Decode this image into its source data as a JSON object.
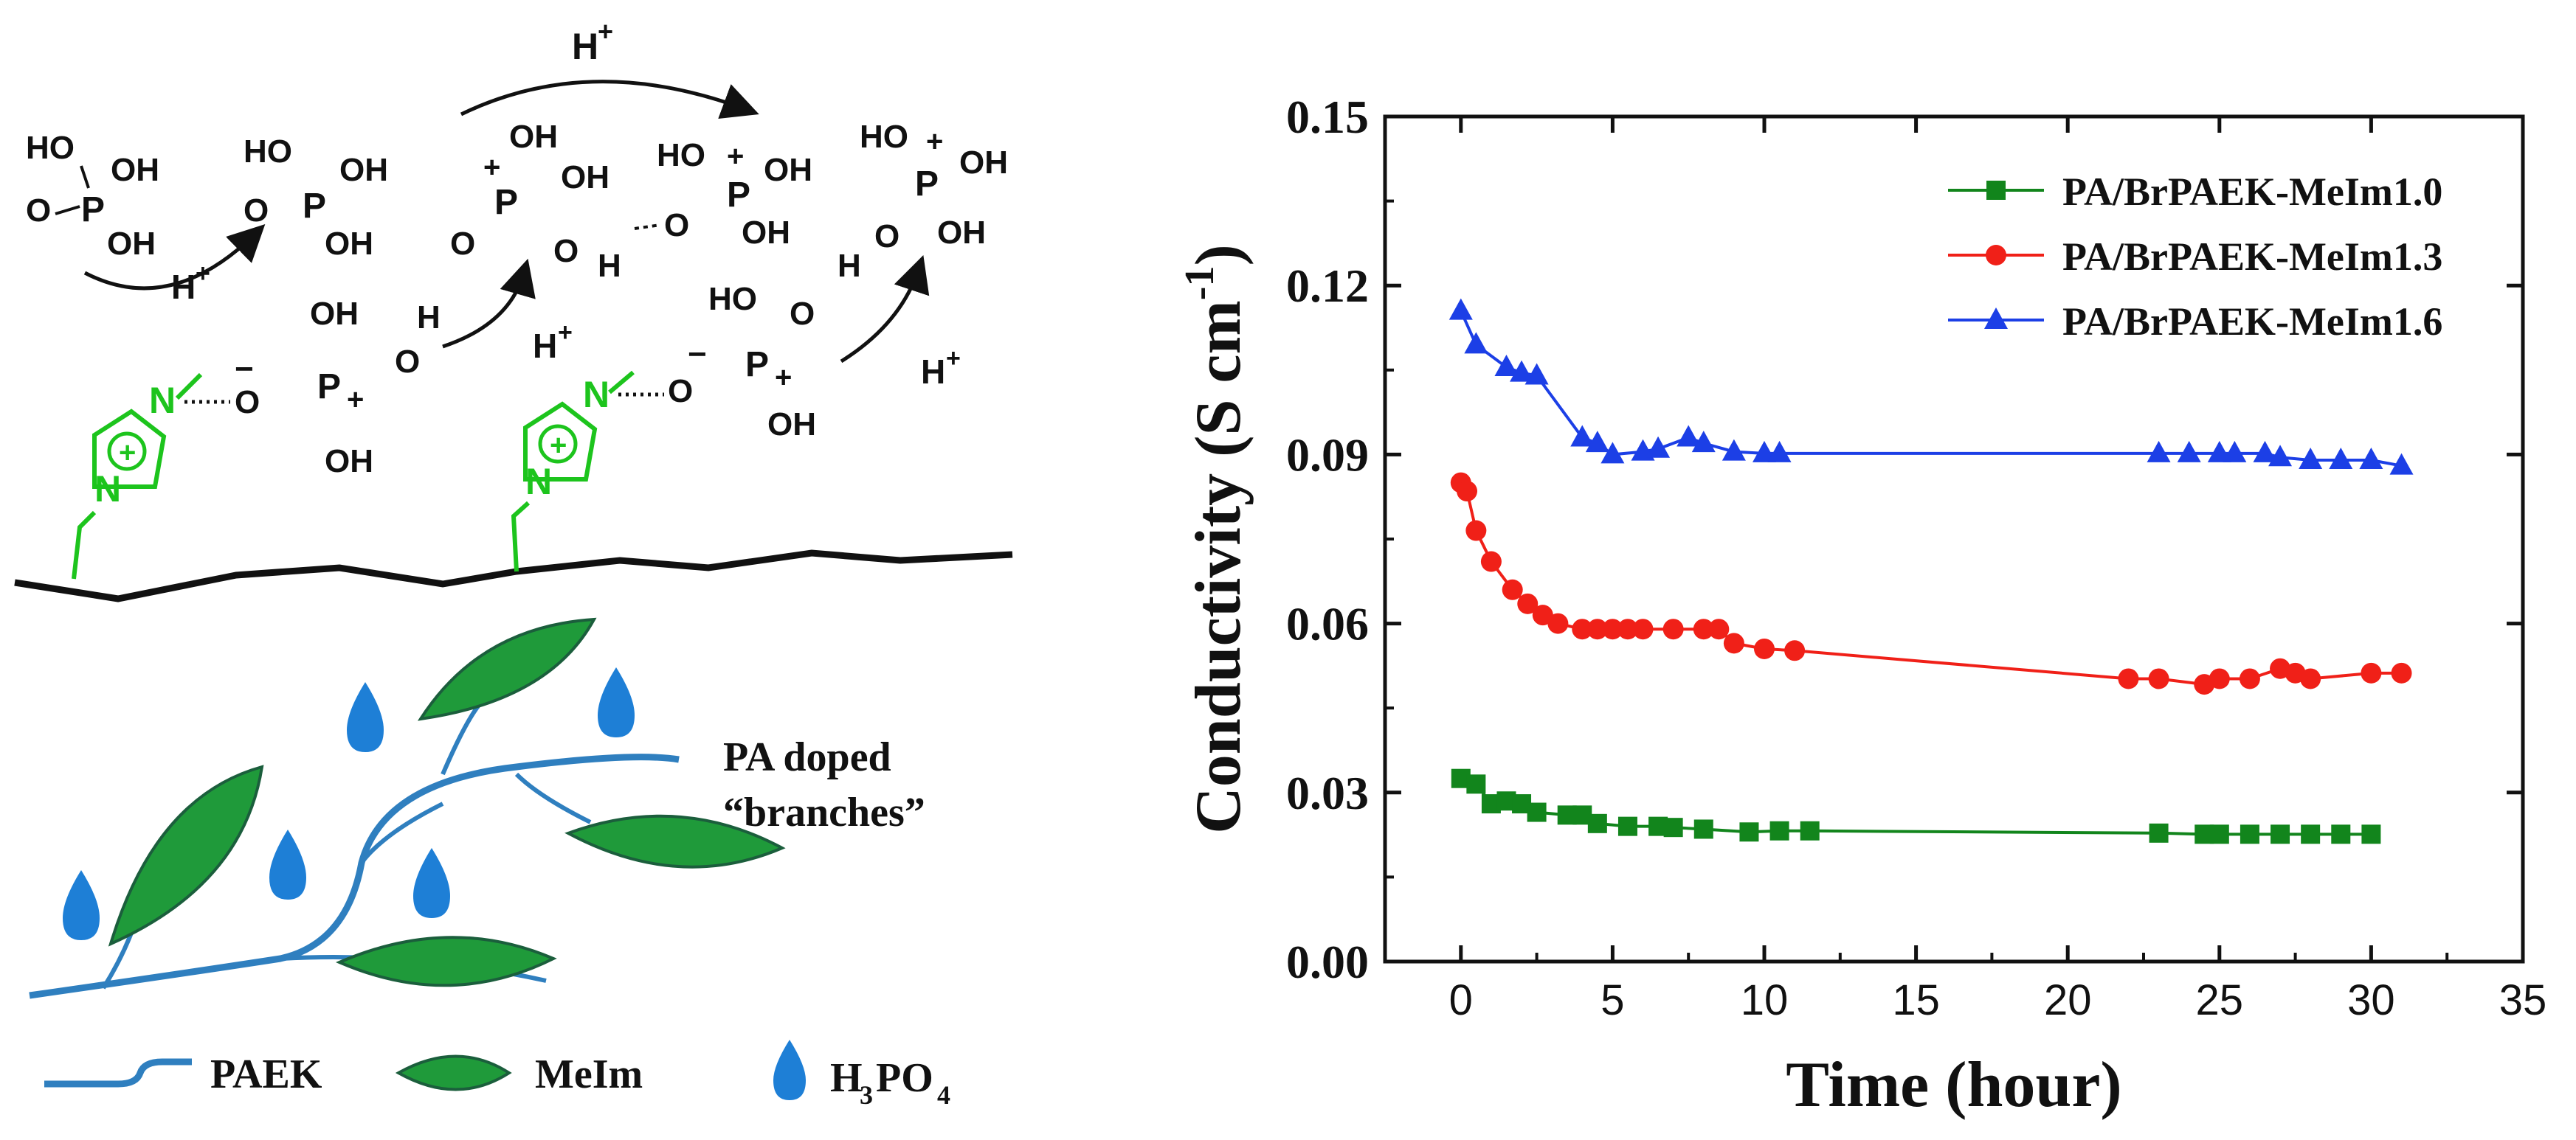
{
  "scheme": {
    "h_plus": "H",
    "plus_sign": "+",
    "minus_sign": "−",
    "oh": "OH",
    "ho": "HO",
    "o": "O",
    "p": "P",
    "h": "H",
    "n": "N",
    "pa_doped_line1": "PA doped",
    "pa_doped_line2": "“branches”",
    "legend": {
      "paek": "PAEK",
      "meim": "MeIm",
      "h3po4_h": "H",
      "h3po4_3": "3",
      "h3po4_po": "PO",
      "h3po4_4": "4"
    },
    "colors": {
      "polymer": "#111111",
      "imidazolium": "#1dc41d",
      "branch": "#2f7fbf",
      "leaf": "#1f9a3a",
      "drop": "#1e7fd6"
    }
  },
  "chart_data": {
    "type": "line",
    "xlabel": "Time (hour)",
    "ylabel_main": "Conductivity (S cm",
    "ylabel_sup": "-1",
    "ylabel_close": ")",
    "xlim": [
      -2.5,
      35
    ],
    "ylim": [
      0,
      0.15
    ],
    "xticks": [
      0,
      5,
      10,
      15,
      20,
      25,
      30,
      35
    ],
    "xtick_labels": [
      "0",
      "5",
      "10",
      "15",
      "20",
      "25",
      "30",
      "35"
    ],
    "yticks": [
      0,
      0.03,
      0.06,
      0.09,
      0.12,
      0.15
    ],
    "ytick_labels": [
      "0.00",
      "0.03",
      "0.06",
      "0.09",
      "0.12",
      "0.15"
    ],
    "grid": false,
    "legend_position": "top-right",
    "series": [
      {
        "name": "PA/BrPAEK-MeIm1.0",
        "marker": "square",
        "color": "#12851c",
        "x": [
          0,
          0.5,
          1,
          1.5,
          2,
          2.5,
          3.5,
          4,
          4.5,
          5.5,
          6.5,
          7,
          8,
          9.5,
          10.5,
          11.5,
          23,
          24.5,
          25,
          26,
          27,
          28,
          29,
          30
        ],
        "y": [
          0.0325,
          0.0315,
          0.028,
          0.0285,
          0.028,
          0.0265,
          0.026,
          0.026,
          0.0245,
          0.024,
          0.024,
          0.0238,
          0.0235,
          0.023,
          0.0232,
          0.0232,
          0.0228,
          0.0226,
          0.0226,
          0.0226,
          0.0226,
          0.0226,
          0.0226,
          0.0226
        ]
      },
      {
        "name": "PA/BrPAEK-MeIm1.3",
        "marker": "circle",
        "color": "#f02018",
        "x": [
          0,
          0.2,
          0.5,
          1,
          1.7,
          2.2,
          2.7,
          3.2,
          4,
          4.5,
          5,
          5.5,
          6,
          7,
          8,
          8.5,
          9,
          10,
          11,
          22,
          23,
          24.5,
          25,
          26,
          27,
          27.5,
          28,
          30,
          31
        ],
        "y": [
          0.085,
          0.0835,
          0.0765,
          0.071,
          0.066,
          0.0635,
          0.0615,
          0.06,
          0.059,
          0.059,
          0.059,
          0.059,
          0.059,
          0.059,
          0.059,
          0.059,
          0.0565,
          0.0555,
          0.0552,
          0.0502,
          0.0502,
          0.0492,
          0.0502,
          0.0502,
          0.052,
          0.0512,
          0.0502,
          0.0512,
          0.0512
        ]
      },
      {
        "name": "PA/BrPAEK-MeIm1.6",
        "marker": "triangle",
        "color": "#1c3fe6",
        "x": [
          0,
          0.5,
          1.5,
          2,
          2.5,
          4,
          4.5,
          5,
          6,
          6.5,
          7.5,
          8,
          9,
          10,
          10.5,
          23,
          24,
          25,
          25.5,
          26.5,
          27,
          28,
          29,
          30,
          31
        ],
        "y": [
          0.1155,
          0.1095,
          0.1055,
          0.1045,
          0.104,
          0.093,
          0.092,
          0.09,
          0.0905,
          0.091,
          0.093,
          0.092,
          0.0905,
          0.0902,
          0.0902,
          0.0902,
          0.0902,
          0.0902,
          0.0902,
          0.0902,
          0.0895,
          0.089,
          0.089,
          0.089,
          0.088
        ]
      }
    ]
  }
}
